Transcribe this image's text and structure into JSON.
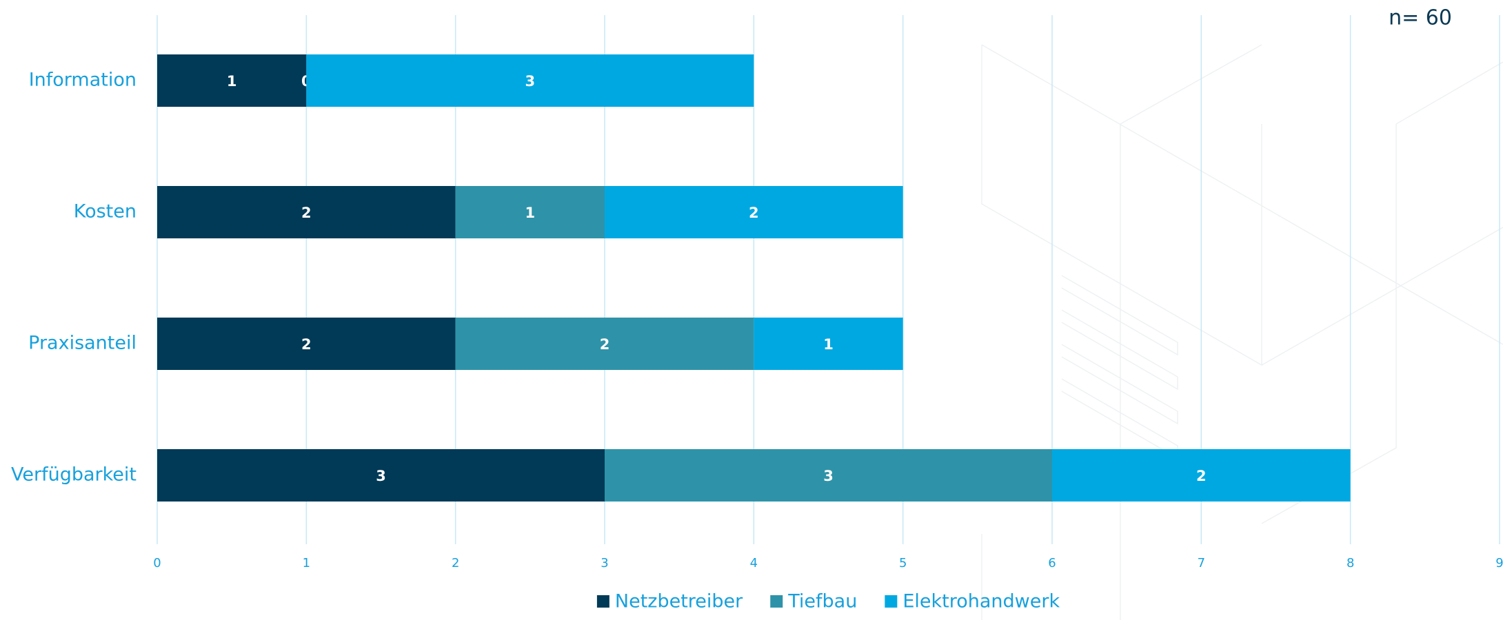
{
  "chart_data": {
    "type": "bar",
    "orientation": "horizontal",
    "stacked": true,
    "annotation": "n= 60",
    "categories": [
      "Information",
      "Kosten",
      "Praxisanteil",
      "Verfügbarkeit"
    ],
    "series": [
      {
        "name": "Netzbetreiber",
        "color": "#003a57",
        "values": [
          1,
          2,
          2,
          3
        ]
      },
      {
        "name": "Tiefbau",
        "color": "#2e93a8",
        "values": [
          0,
          1,
          2,
          3
        ]
      },
      {
        "name": "Elektrohandwerk",
        "color": "#00a8e1",
        "values": [
          3,
          2,
          1,
          2
        ]
      }
    ],
    "xlim": [
      0,
      9
    ],
    "xticks": [
      0,
      1,
      2,
      3,
      4,
      5,
      6,
      7,
      8,
      9
    ],
    "grid": true,
    "legend": "bottom"
  }
}
